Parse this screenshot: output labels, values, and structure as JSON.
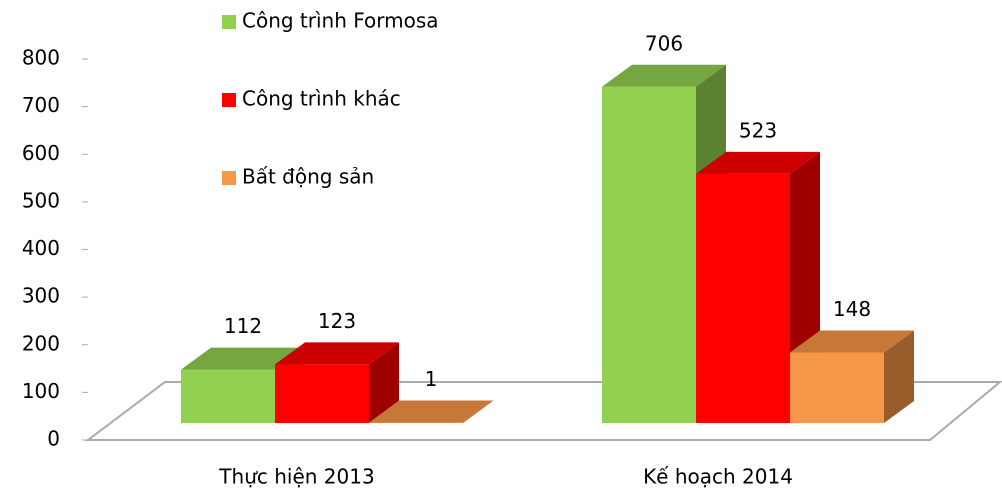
{
  "chart_data": {
    "type": "bar3d",
    "categories": [
      "Thực hiện 2013",
      "Kế hoạch 2014"
    ],
    "series": [
      {
        "name": "Công trình Formosa",
        "color": "#92d050",
        "values": [
          112,
          706
        ]
      },
      {
        "name": "Công trình khác",
        "color": "#ff0000",
        "values": [
          123,
          523
        ]
      },
      {
        "name": "Bất động sản",
        "color": "#f79646",
        "values": [
          1,
          148
        ]
      }
    ],
    "ylim": [
      0,
      800
    ],
    "yticks": [
      0,
      100,
      200,
      300,
      400,
      500,
      600,
      700,
      800
    ],
    "legend": "top-left"
  }
}
